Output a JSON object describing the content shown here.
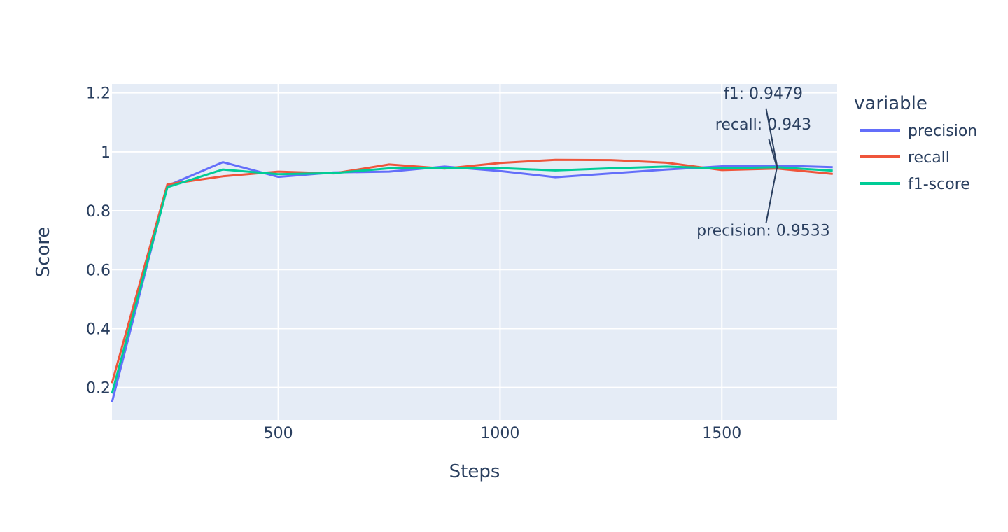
{
  "chart_data": {
    "type": "line",
    "xlabel": "Steps",
    "ylabel": "Score",
    "xlim": [
      125,
      1760
    ],
    "ylim": [
      0.09,
      1.23
    ],
    "x_ticks": [
      500,
      1000,
      1500
    ],
    "x_tick_labels": [
      "500",
      "1000",
      "1500"
    ],
    "y_ticks": [
      0.2,
      0.4,
      0.6,
      0.8,
      1.0,
      1.2
    ],
    "y_tick_labels": [
      "0.2",
      "0.4",
      "0.6",
      "0.8",
      "1",
      "1.2"
    ],
    "grid": true,
    "legend": {
      "title": "variable",
      "position": "right"
    },
    "x": [
      125,
      250,
      375,
      500,
      625,
      750,
      875,
      1000,
      1125,
      1250,
      1375,
      1500,
      1625,
      1750
    ],
    "series": [
      {
        "name": "precision",
        "color": "#636efa",
        "values": [
          0.15,
          0.885,
          0.965,
          0.915,
          0.93,
          0.933,
          0.95,
          0.935,
          0.914,
          0.927,
          0.94,
          0.951,
          0.9533,
          0.948
        ]
      },
      {
        "name": "recall",
        "color": "#ef553b",
        "values": [
          0.215,
          0.89,
          0.917,
          0.933,
          0.927,
          0.957,
          0.943,
          0.962,
          0.973,
          0.972,
          0.963,
          0.938,
          0.943,
          0.925
        ]
      },
      {
        "name": "f1-score",
        "color": "#00cc96",
        "values": [
          0.18,
          0.88,
          0.94,
          0.924,
          0.928,
          0.944,
          0.946,
          0.945,
          0.937,
          0.944,
          0.95,
          0.944,
          0.9479,
          0.936
        ]
      }
    ],
    "annotations": [
      {
        "text": "f1: 0.9479",
        "x": 1625,
        "y": 0.9479,
        "label_pos": "above-far"
      },
      {
        "text": "recall: 0.943",
        "x": 1625,
        "y": 0.943,
        "label_pos": "above-near"
      },
      {
        "text": "precision: 0.9533",
        "x": 1625,
        "y": 0.9533,
        "label_pos": "below"
      }
    ]
  }
}
